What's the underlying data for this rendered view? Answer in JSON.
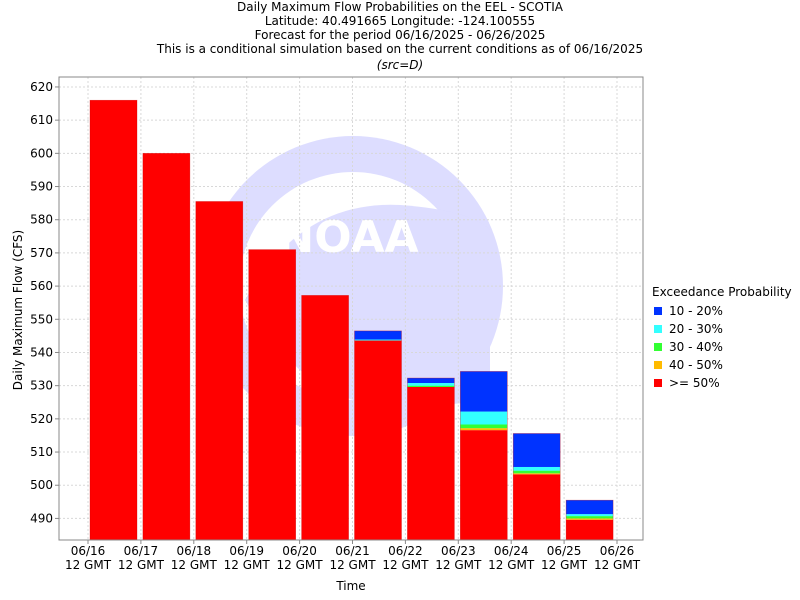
{
  "chart_data": {
    "type": "bar",
    "stacked": true,
    "title_lines": [
      "Daily Maximum Flow Probabilities on the EEL - SCOTIA",
      "Latitude: 40.491665 Longitude: -124.100555",
      "Forecast for the period 06/16/2025 - 06/26/2025",
      "This is a conditional simulation based on the current conditions as of 06/16/2025"
    ],
    "subtitle": "(src=D)",
    "xlabel": "Time",
    "ylabel": "Daily Maximum Flow (CFS)",
    "ylim": [
      483.5,
      623
    ],
    "yticks": [
      490,
      500,
      510,
      520,
      530,
      540,
      550,
      560,
      570,
      580,
      590,
      600,
      610,
      620
    ],
    "x_tick_labels": [
      [
        "06/16",
        "12 GMT"
      ],
      [
        "06/17",
        "12 GMT"
      ],
      [
        "06/18",
        "12 GMT"
      ],
      [
        "06/19",
        "12 GMT"
      ],
      [
        "06/20",
        "12 GMT"
      ],
      [
        "06/21",
        "12 GMT"
      ],
      [
        "06/22",
        "12 GMT"
      ],
      [
        "06/23",
        "12 GMT"
      ],
      [
        "06/24",
        "12 GMT"
      ],
      [
        "06/25",
        "12 GMT"
      ],
      [
        "06/26",
        "12 GMT"
      ]
    ],
    "grid": true,
    "watermark": "NOAA (National Oceanic and Atmospheric Administration) logo",
    "legend": {
      "title": "Exceedance Probability",
      "placement": "right",
      "items": [
        {
          "label": "10 - 20%",
          "color": "#0033ff"
        },
        {
          "label": "20 - 30%",
          "color": "#33ffff"
        },
        {
          "label": "30 - 40%",
          "color": "#33ff33"
        },
        {
          "label": "40 - 50%",
          "color": "#ffbb00"
        },
        {
          "label": ">= 50%",
          "color": "#ff0000"
        }
      ]
    },
    "bars": [
      {
        "p50": 616.0,
        "p40": 616.0,
        "p30": 616.0,
        "p20": 616.0,
        "p10": 616.0
      },
      {
        "p50": 600.0,
        "p40": 600.0,
        "p30": 600.0,
        "p20": 600.0,
        "p10": 600.0
      },
      {
        "p50": 585.5,
        "p40": 585.5,
        "p30": 585.5,
        "p20": 585.5,
        "p10": 585.5
      },
      {
        "p50": 571.0,
        "p40": 571.0,
        "p30": 571.0,
        "p20": 571.0,
        "p10": 571.0
      },
      {
        "p50": 557.2,
        "p40": 557.2,
        "p30": 557.2,
        "p20": 557.2,
        "p10": 557.2
      },
      {
        "p50": 543.6,
        "p40": 543.6,
        "p30": 543.6,
        "p20": 543.9,
        "p10": 546.5
      },
      {
        "p50": 529.6,
        "p40": 529.6,
        "p30": 530.0,
        "p20": 530.8,
        "p10": 532.3
      },
      {
        "p50": 516.6,
        "p40": 517.2,
        "p30": 518.3,
        "p20": 522.2,
        "p10": 534.3
      },
      {
        "p50": 503.3,
        "p40": 503.6,
        "p30": 504.4,
        "p20": 505.5,
        "p10": 515.6
      },
      {
        "p50": 489.6,
        "p40": 490.0,
        "p30": 490.7,
        "p20": 491.3,
        "p10": 495.5
      }
    ]
  }
}
